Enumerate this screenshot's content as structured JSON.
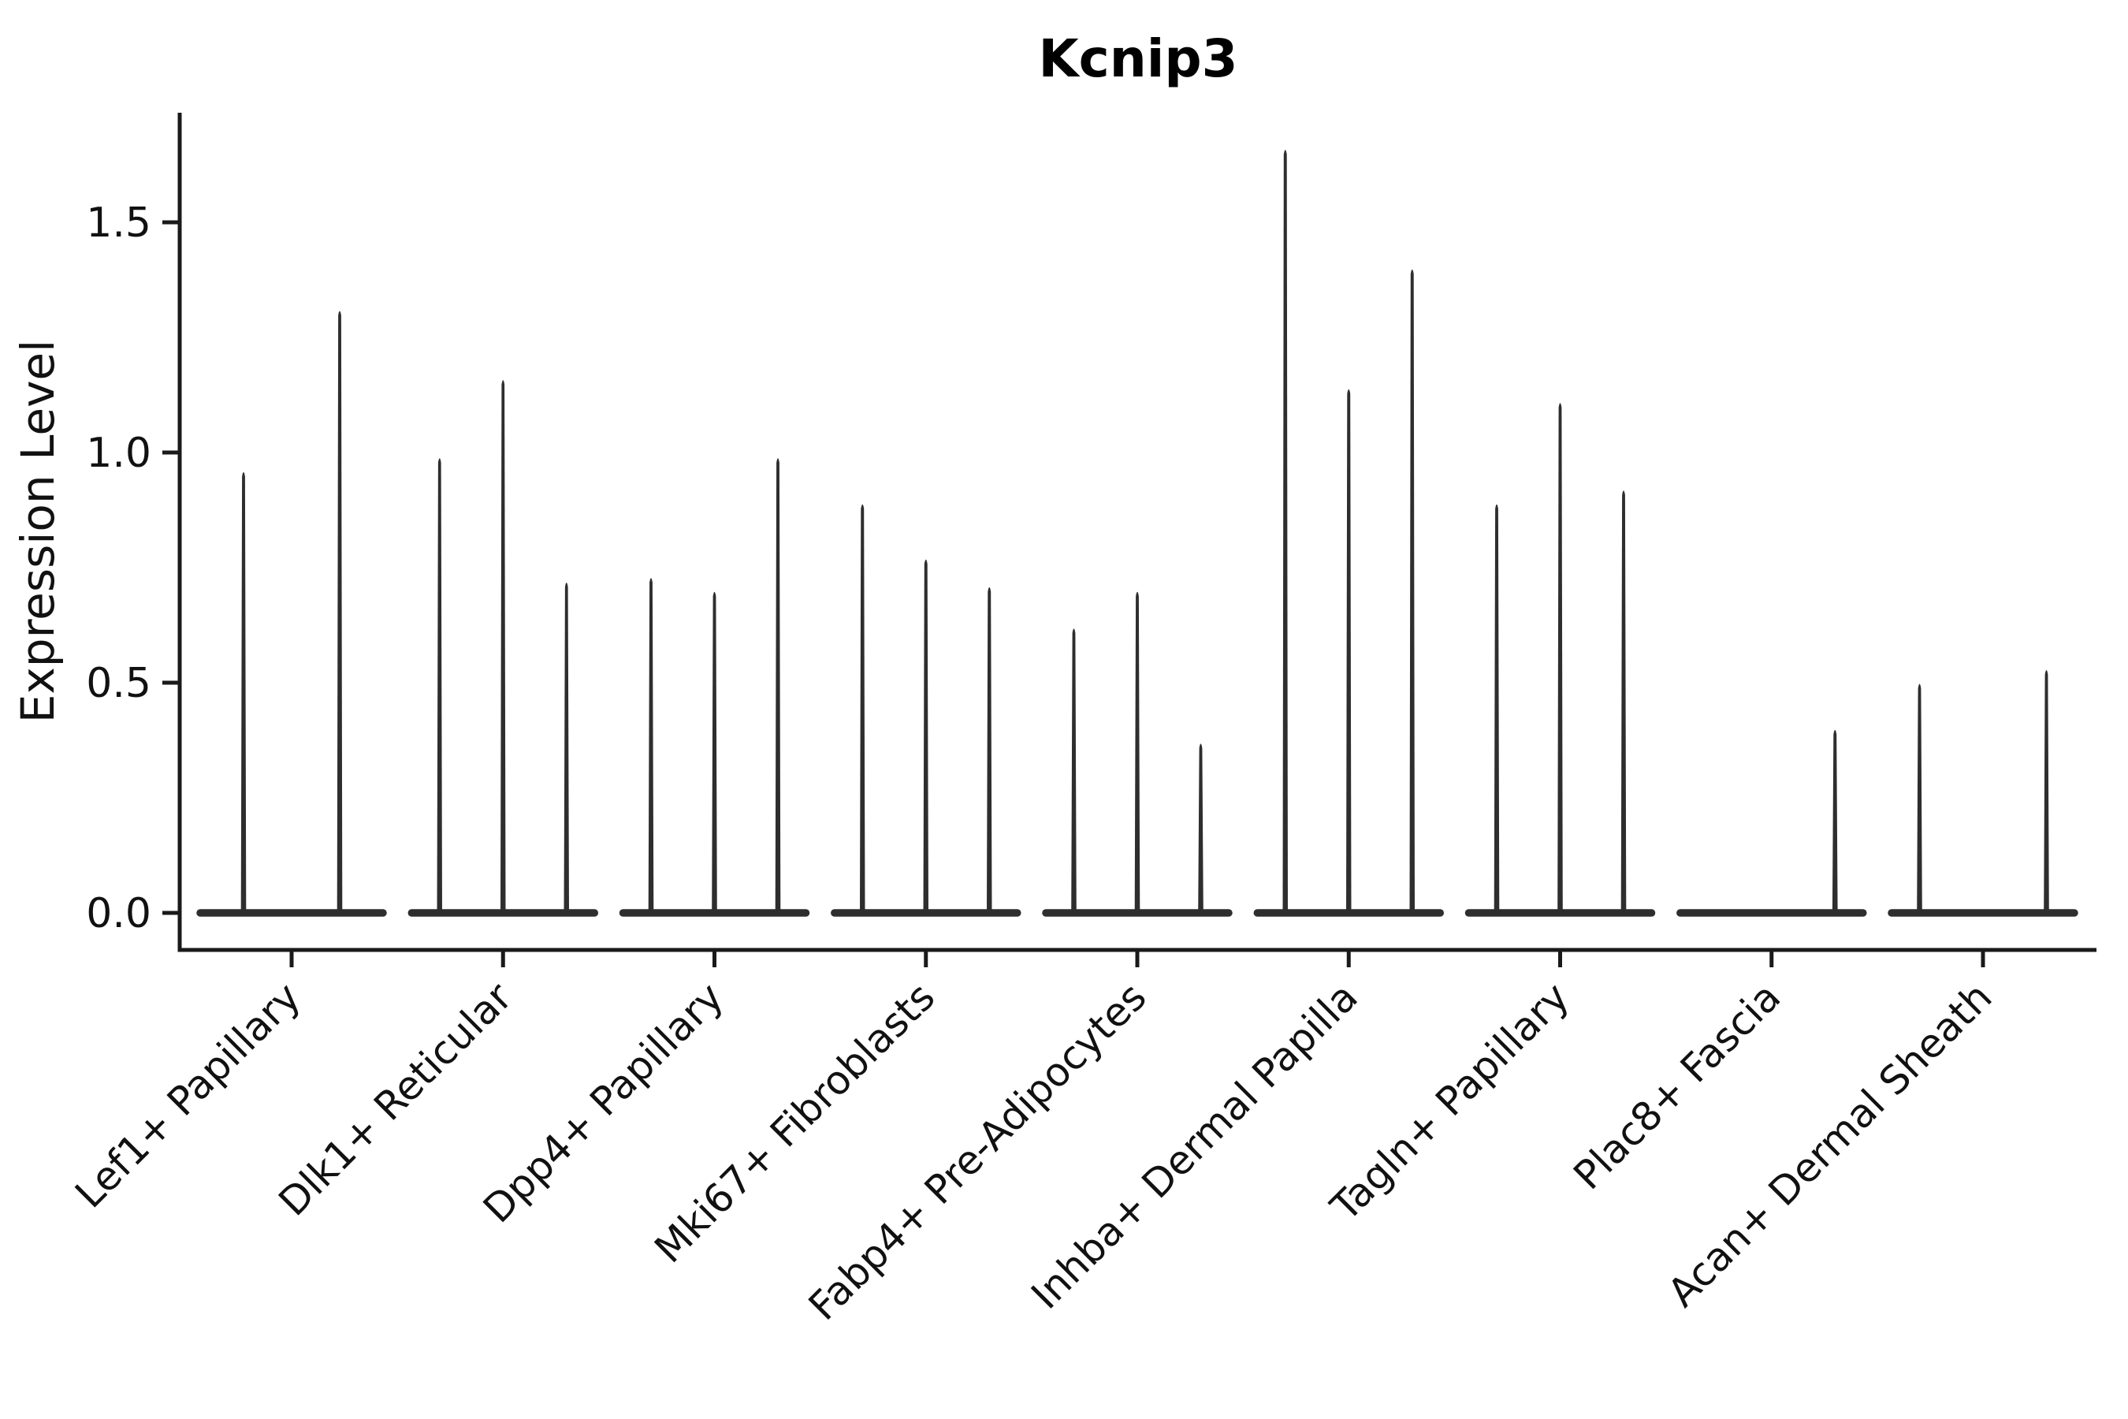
{
  "title": "Kcnip3",
  "y_axis": {
    "label": "Expression Level",
    "tick_labels": [
      "0.0",
      "0.5",
      "1.0",
      "1.5"
    ]
  },
  "chart_data": {
    "type": "violin",
    "title": "Kcnip3",
    "xlabel": "",
    "ylabel": "Expression Level",
    "ylim": [
      0,
      1.74
    ],
    "yticks": [
      0.0,
      0.5,
      1.0,
      1.5
    ],
    "ytick_labels": [
      "0.0",
      "0.5",
      "1.0",
      "1.5"
    ],
    "grid": false,
    "legend": "none",
    "x_label_rotation": 45,
    "violin_shape": "zero-inflated thin spike; wide flat base at 0, narrow tail to max",
    "categories": [
      "Lef1+ Papillary",
      "Dlk1+ Reticular",
      "Dpp4+ Papillary",
      "Mki67+ Fibroblasts",
      "Fabp4+ Pre-Adipocytes",
      "Inhba+ Dermal Papilla",
      "Tagln+ Papillary",
      "Plac8+ Fascia",
      "Acan+ Dermal Sheath"
    ],
    "groups": [
      {
        "category": "Lef1+ Papillary",
        "violins": [
          {
            "max": 0.96
          },
          {
            "max": 1.31
          }
        ]
      },
      {
        "category": "Dlk1+ Reticular",
        "violins": [
          {
            "max": 0.99
          },
          {
            "max": 1.16
          },
          {
            "max": 0.72
          }
        ]
      },
      {
        "category": "Dpp4+ Papillary",
        "violins": [
          {
            "max": 0.73
          },
          {
            "max": 0.7
          },
          {
            "max": 0.99
          }
        ]
      },
      {
        "category": "Mki67+ Fibroblasts",
        "violins": [
          {
            "max": 0.89
          },
          {
            "max": 0.77
          },
          {
            "max": 0.71
          }
        ]
      },
      {
        "category": "Fabp4+ Pre-Adipocytes",
        "violins": [
          {
            "max": 0.62
          },
          {
            "max": 0.7
          },
          {
            "max": 0.37
          }
        ]
      },
      {
        "category": "Inhba+ Dermal Papilla",
        "violins": [
          {
            "max": 1.66
          },
          {
            "max": 1.14
          },
          {
            "max": 1.4
          }
        ]
      },
      {
        "category": "Tagln+ Papillary",
        "violins": [
          {
            "max": 0.89
          },
          {
            "max": 1.11
          },
          {
            "max": 0.92
          }
        ]
      },
      {
        "category": "Plac8+ Fascia",
        "violins": [
          {
            "max": 0.0
          },
          {
            "max": 0.0
          },
          {
            "max": 0.4
          }
        ]
      },
      {
        "category": "Acan+ Dermal Sheath",
        "violins": [
          {
            "max": 0.5
          },
          {
            "max": 0.0
          },
          {
            "max": 0.53
          }
        ]
      }
    ],
    "colors": {
      "violin": "#2e2e2e",
      "axis": "#1a1a1a",
      "text": "#111111",
      "background": "#ffffff"
    }
  }
}
